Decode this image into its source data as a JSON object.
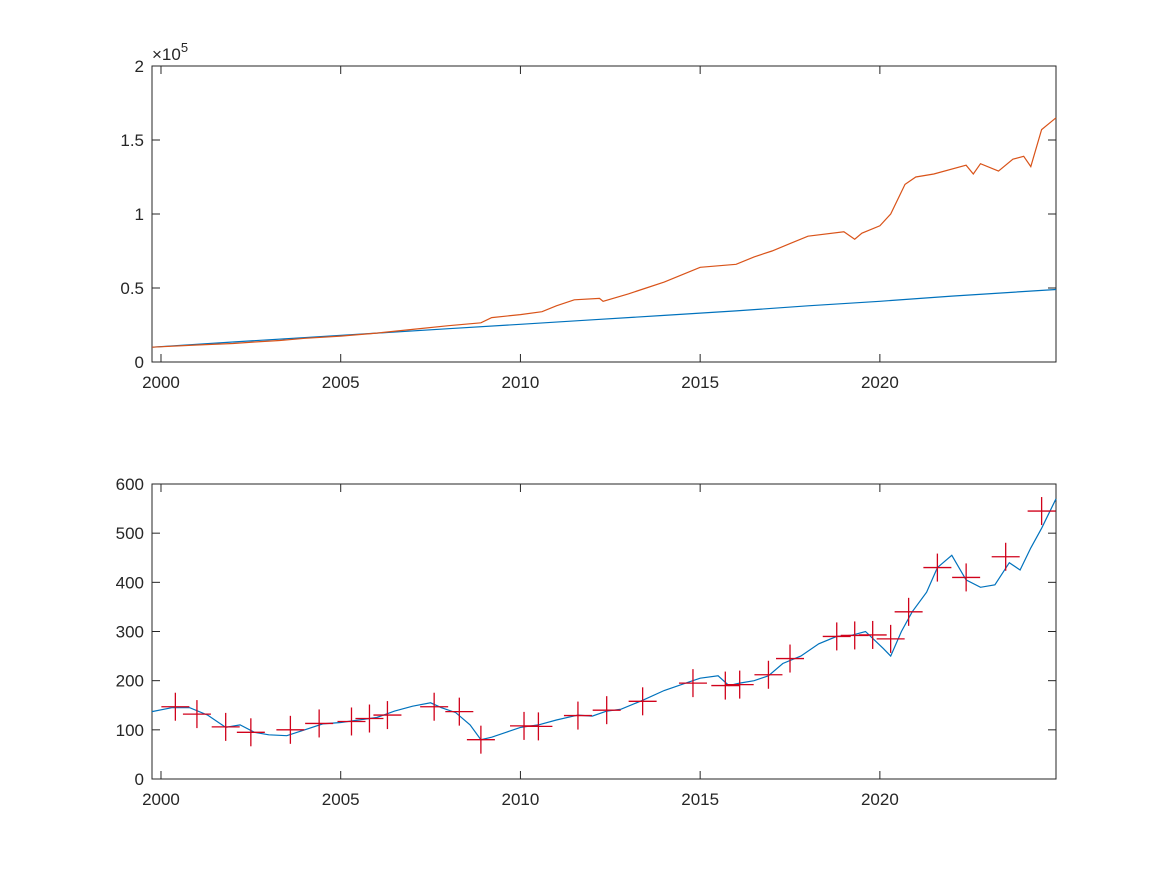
{
  "chart_data": [
    {
      "type": "line",
      "xlim": [
        1999.75,
        2024.9
      ],
      "ylim": [
        0,
        200000
      ],
      "xticks": [
        2000,
        2005,
        2010,
        2015,
        2020
      ],
      "xtick_labels": [
        "2000",
        "2005",
        "2010",
        "2015",
        "2020"
      ],
      "yticks": [
        0,
        50000,
        100000,
        150000,
        200000
      ],
      "ytick_labels": [
        "0",
        "0.5",
        "1",
        "1.5",
        "2"
      ],
      "exponent_label": {
        "base": "×10",
        "power": "5"
      },
      "grid": false,
      "series": [
        {
          "color": "#0072bd",
          "x": [
            1999.75,
            2002,
            2004,
            2006,
            2008,
            2010,
            2012,
            2014,
            2016,
            2018,
            2020,
            2022,
            2024.9
          ],
          "y": [
            10000,
            13500,
            16500,
            19500,
            22500,
            25500,
            28500,
            31500,
            34500,
            38000,
            41000,
            44500,
            49000
          ]
        },
        {
          "color": "#d95319",
          "x": [
            1999.75,
            2001,
            2002,
            2002.6,
            2003.3,
            2004,
            2005,
            2006,
            2007,
            2008,
            2008.9,
            2009.2,
            2010,
            2010.6,
            2011,
            2011.5,
            2012.2,
            2012.3,
            2013,
            2013.5,
            2014,
            2014.5,
            2015,
            2016,
            2016.5,
            2017,
            2017.5,
            2018,
            2019,
            2019.3,
            2019.5,
            2020,
            2020.3,
            2020.7,
            2021,
            2021.5,
            2022.4,
            2022.6,
            2022.8,
            2023.3,
            2023.7,
            2024,
            2024.2,
            2024.5,
            2024.9
          ],
          "y": [
            10000,
            11500,
            12500,
            13500,
            14500,
            16000,
            17500,
            19500,
            22000,
            24500,
            26500,
            30000,
            32000,
            34000,
            38000,
            42000,
            43000,
            41000,
            46000,
            50000,
            54000,
            59000,
            64000,
            66000,
            71000,
            75000,
            80000,
            85000,
            88000,
            83000,
            87000,
            92000,
            100000,
            120000,
            125000,
            127000,
            133000,
            127000,
            134000,
            129000,
            137000,
            139000,
            132000,
            157000,
            165000
          ]
        }
      ]
    },
    {
      "type": "line",
      "xlim": [
        1999.75,
        2024.9
      ],
      "ylim": [
        0,
        600
      ],
      "xticks": [
        2000,
        2005,
        2010,
        2015,
        2020
      ],
      "xtick_labels": [
        "2000",
        "2005",
        "2010",
        "2015",
        "2020"
      ],
      "yticks": [
        0,
        100,
        200,
        300,
        400,
        500,
        600
      ],
      "ytick_labels": [
        "0",
        "100",
        "200",
        "300",
        "400",
        "500",
        "600"
      ],
      "grid": false,
      "series": [
        {
          "color": "#0072bd",
          "x": [
            1999.75,
            2000.3,
            2000.8,
            2001.3,
            2001.8,
            2002.2,
            2002.6,
            2003,
            2003.5,
            2004,
            2004.5,
            2005,
            2005.5,
            2006,
            2006.5,
            2007,
            2007.5,
            2007.8,
            2008.2,
            2008.6,
            2008.9,
            2009.2,
            2009.6,
            2010,
            2010.5,
            2011,
            2011.6,
            2012,
            2012.4,
            2012.8,
            2013.4,
            2014,
            2014.6,
            2015,
            2015.5,
            2015.8,
            2016.1,
            2016.5,
            2016.9,
            2017.3,
            2017.8,
            2018.3,
            2018.8,
            2019.2,
            2019.6,
            2020.1,
            2020.3,
            2020.6,
            2020.9,
            2021.3,
            2021.6,
            2022,
            2022.4,
            2022.8,
            2023.2,
            2023.6,
            2023.9,
            2024.2,
            2024.5,
            2024.9
          ],
          "y": [
            137,
            145,
            145,
            130,
            105,
            110,
            95,
            90,
            88,
            100,
            112,
            115,
            120,
            125,
            138,
            148,
            155,
            145,
            135,
            110,
            80,
            85,
            95,
            105,
            110,
            120,
            130,
            128,
            138,
            142,
            160,
            180,
            195,
            205,
            210,
            190,
            195,
            200,
            210,
            235,
            250,
            275,
            290,
            292,
            300,
            265,
            250,
            300,
            340,
            380,
            430,
            455,
            405,
            390,
            395,
            440,
            425,
            470,
            510,
            570
          ]
        },
        {
          "type": "scatter",
          "marker": "+",
          "color": "#d0021b",
          "x": [
            2000.4,
            2001,
            2001.8,
            2002.5,
            2003.6,
            2004.4,
            2005.3,
            2005.8,
            2006.3,
            2007.6,
            2008.3,
            2008.9,
            2010.1,
            2010.5,
            2011.6,
            2012.4,
            2013.4,
            2014.8,
            2015.7,
            2016.1,
            2016.9,
            2017.5,
            2018.8,
            2019.3,
            2019.8,
            2020.3,
            2020.8,
            2021.6,
            2022.4,
            2023.5,
            2024.5
          ],
          "y": [
            147,
            132,
            106,
            95,
            100,
            113,
            117,
            123,
            130,
            147,
            137,
            80,
            108,
            107,
            129,
            140,
            158,
            195,
            190,
            192,
            212,
            245,
            290,
            292,
            293,
            285,
            340,
            430,
            410,
            452,
            545
          ]
        }
      ]
    }
  ]
}
